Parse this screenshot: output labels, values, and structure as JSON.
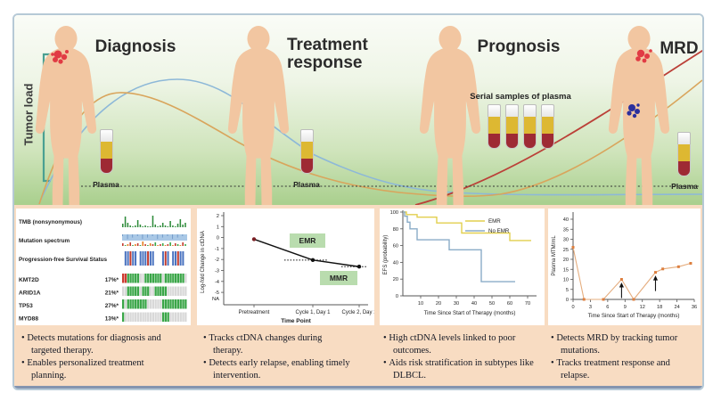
{
  "figure": {
    "top": {
      "axis_label": "Tumor load",
      "stages": [
        {
          "title": "Diagnosis",
          "plasma_label": "Plasma"
        },
        {
          "title": "Treatment response",
          "plasma_label": "Plasma"
        },
        {
          "title": "Prognosis",
          "serial_label": "Serial samples of plasma"
        },
        {
          "title": "MRD",
          "plasma_label": "Plasma"
        }
      ]
    },
    "bullets": [
      {
        "items": [
          "Detects mutations for diagnosis and targeted therapy.",
          "Enables personalized treatment planning."
        ]
      },
      {
        "items": [
          "Tracks ctDNA changes during therapy.",
          "Detects early relapse, enabling timely intervention."
        ]
      },
      {
        "items": [
          "High ctDNA levels linked to poor outcomes.",
          "Aids risk stratification in subtypes like DLBCL."
        ]
      },
      {
        "items": [
          "Detects MRD by tracking tumor mutations.",
          "Tracks treatment response and relapse."
        ]
      }
    ]
  },
  "chart_data": [
    {
      "id": "oncoprint",
      "type": "heatmap",
      "tracks": [
        {
          "label": "TMB (nonsynonymous)",
          "kind": "bars",
          "values": [
            4,
            12,
            5,
            2,
            1,
            2,
            8,
            3,
            1,
            2,
            1,
            1,
            13,
            3,
            1,
            2,
            5,
            2,
            1,
            7,
            2,
            1,
            4,
            9,
            3,
            5
          ]
        },
        {
          "label": "Mutation spectrum",
          "kind": "spectrum",
          "speck_heights": [
            3,
            1,
            2,
            4,
            1,
            2,
            3,
            1,
            5,
            2,
            1,
            3,
            2,
            4,
            1,
            2,
            3,
            1,
            2,
            4,
            1,
            3,
            2,
            1,
            4,
            2
          ]
        },
        {
          "label": "Progression-free Survival Status",
          "kind": "categorical",
          "pattern": "wbbrbbwbbbrbbwwwbrbwbbrbbw"
        },
        {
          "label": "KMT2D",
          "pct": "17%*",
          "kind": "cells",
          "pattern": "rrggggg..ggggggg.gggggggg."
        },
        {
          "label": "ARID1A",
          "pct": "21%*",
          "kind": "cells",
          "pattern": "..ggggg.ggg..ggggg........"
        },
        {
          "label": "TP53",
          "pct": "27%*",
          "kind": "cells",
          "pattern": "g.gggggggg......gggggggggg"
        },
        {
          "label": "MYD88",
          "pct": "13%*",
          "kind": "cells",
          "pattern": "g...............ggg......."
        }
      ]
    },
    {
      "id": "ctdna_response",
      "type": "line",
      "ylabel": "Log-fold Change in ctDNA",
      "xlabel": "Time Point",
      "yticks": [
        2,
        1,
        0,
        -1,
        -2,
        -3,
        -4,
        -5
      ],
      "na_tick": "NA",
      "categories": [
        "Pretreatment",
        "Cycle 1, Day 1",
        "Cycle 2, Day 1"
      ],
      "values": [
        -0.15,
        -2.05,
        -2.65
      ],
      "annotations": [
        {
          "label": "EMR"
        },
        {
          "label": "MMR"
        }
      ]
    },
    {
      "id": "efs_km",
      "type": "line",
      "ylabel": "EFS (probability)",
      "xlabel": "Time Since Start of Therapy (months)",
      "yticks": [
        0,
        20,
        40,
        60,
        80,
        100
      ],
      "xticks": [
        10,
        20,
        30,
        40,
        50,
        60,
        70
      ],
      "xmax": 73,
      "legend_position": "top-right",
      "series": [
        {
          "name": "EMR",
          "color": "#e2cf4e",
          "steps": [
            [
              0,
              100
            ],
            [
              2,
              97
            ],
            [
              8,
              94
            ],
            [
              19,
              87
            ],
            [
              33,
              75
            ],
            [
              60,
              66
            ],
            [
              72,
              66
            ]
          ]
        },
        {
          "name": "No EMR",
          "color": "#8aacc8",
          "steps": [
            [
              0,
              100
            ],
            [
              1,
              95
            ],
            [
              2.5,
              88
            ],
            [
              4,
              80
            ],
            [
              8,
              67
            ],
            [
              26,
              55
            ],
            [
              44,
              17
            ],
            [
              63,
              17
            ]
          ]
        }
      ]
    },
    {
      "id": "mrd_tracking",
      "type": "line",
      "ylabel": "Plasma  MTM/mL",
      "xlabel": "Time Since Start of Therapy (months)",
      "yticks": [
        0,
        5,
        10,
        15,
        20,
        25,
        30,
        35,
        40
      ],
      "xtick_labels": [
        "0",
        "3",
        "6",
        "9",
        "12",
        "18",
        "24",
        "36"
      ],
      "points_frac": [
        [
          0.0,
          26
        ],
        [
          0.09,
          0
        ],
        [
          0.25,
          0
        ],
        [
          0.4,
          10
        ],
        [
          0.5,
          0
        ],
        [
          0.68,
          13.5
        ],
        [
          0.74,
          15.2
        ],
        [
          0.87,
          16.3
        ],
        [
          0.97,
          18
        ]
      ],
      "arrow_point_indexes": [
        3,
        5
      ]
    }
  ],
  "colors": {
    "band_green": "#a9cf8d",
    "peach": "#f8dcc2",
    "curve_blue": "#8db8d8",
    "curve_orange": "#d9a55c",
    "curve_red": "#bb4038",
    "plasma_yellow": "#ddb832",
    "blood_red": "#9e2a34",
    "tumor_red": "#e13b44",
    "tumor_blue": "#2b2f9d",
    "onco_green": "#3aa648",
    "onco_red": "#cc3b30",
    "cell_gray": "#d8d8d8",
    "pfs_blue": "#4a73c0",
    "pfs_red": "#c23b2e",
    "spectrum_strip": "#a9c8e6",
    "km_yellow": "#e2cf4e",
    "km_blue": "#8aacc8",
    "mtm_orange": "#dd7f3f",
    "divider_slate": "#8494af",
    "annotation_green": "#b9dcae"
  }
}
